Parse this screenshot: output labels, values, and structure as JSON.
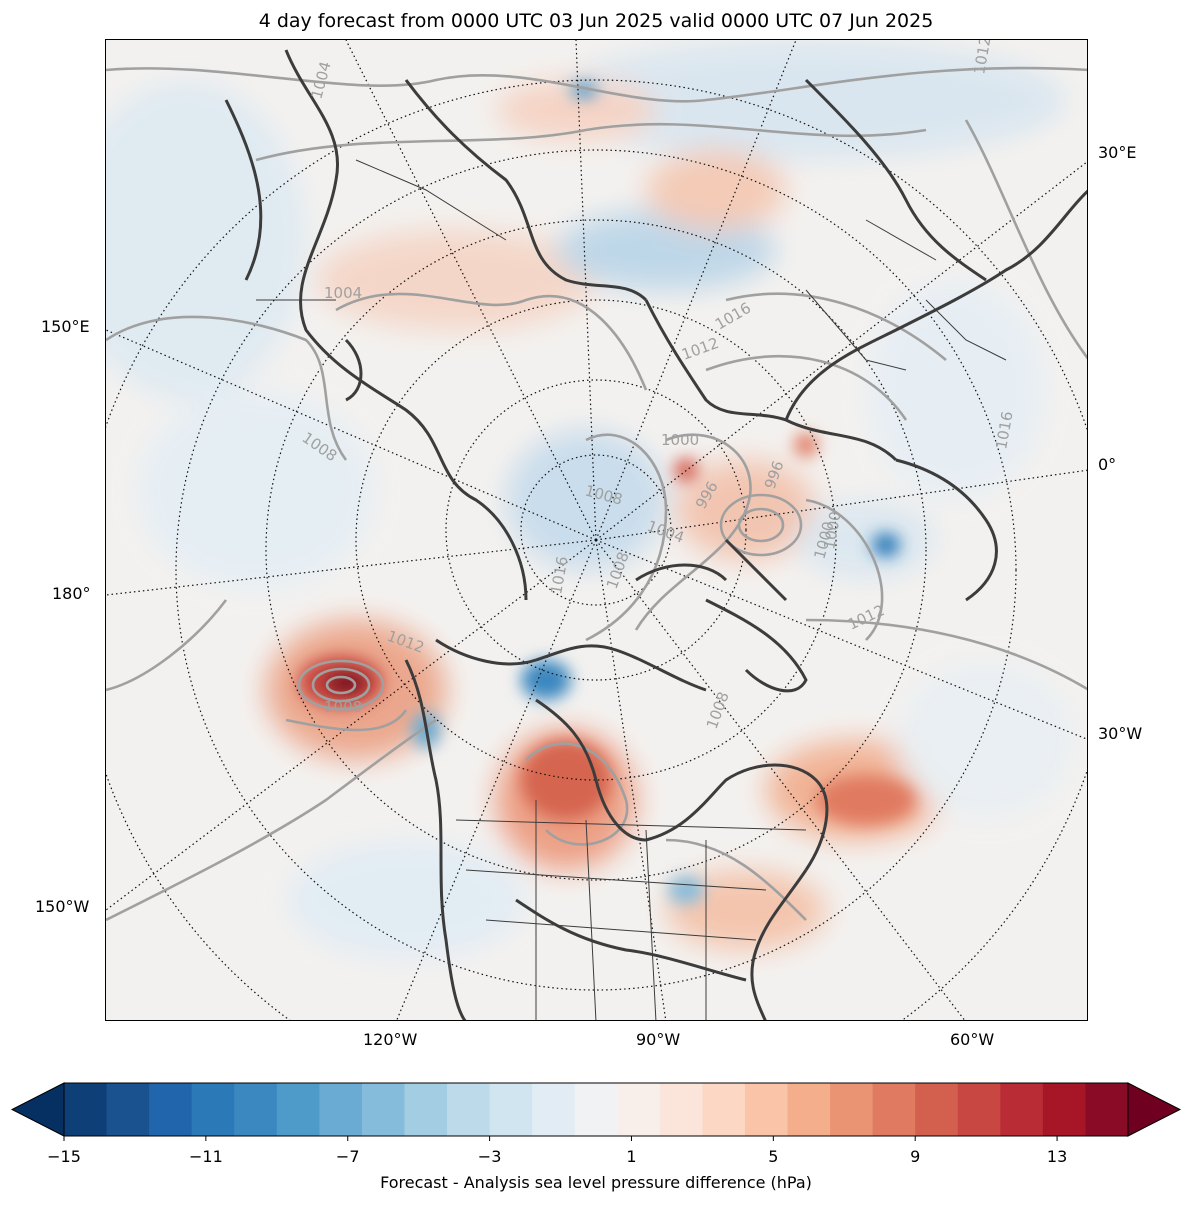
{
  "title": "4 day forecast from 0000 UTC 03 Jun 2025 valid 0000 UTC 07 Jun 2025",
  "longitude_labels": {
    "e30": "30°E",
    "e150": "150°E",
    "zero": "0°",
    "deg180": "180°",
    "w30": "30°W",
    "w150": "150°W",
    "w120": "120°W",
    "w90": "90°W",
    "w60": "60°W"
  },
  "isobar_labels": [
    "1004",
    "1004",
    "1008",
    "1008",
    "1008",
    "1000",
    "996",
    "1000",
    "1004",
    "1012",
    "1016",
    "1016",
    "1012",
    "1008",
    "1016",
    "1012",
    "996",
    "1000",
    "1008",
    "1012"
  ],
  "colorbar": {
    "label": "Forecast - Analysis sea level pressure difference (hPa)",
    "ticks": [
      "−15",
      "−11",
      "−7",
      "−3",
      "1",
      "5",
      "9",
      "13"
    ],
    "min": -15,
    "max": 15,
    "step": 1,
    "colors": [
      "#053061",
      "#0e3f77",
      "#1a5290",
      "#2166ac",
      "#2c79b8",
      "#3b87c0",
      "#4e9ac9",
      "#69abd2",
      "#86bcdb",
      "#a2cde3",
      "#bcdaea",
      "#d1e5f0",
      "#e2ecf4",
      "#f1f2f4",
      "#f8efeb",
      "#fbe5db",
      "#fcd7c3",
      "#f9c4a8",
      "#f4ae8c",
      "#eb9473",
      "#e07a60",
      "#d35f4f",
      "#c84742",
      "#b92b35",
      "#a61627",
      "#8a0b25",
      "#6f0020"
    ]
  }
}
